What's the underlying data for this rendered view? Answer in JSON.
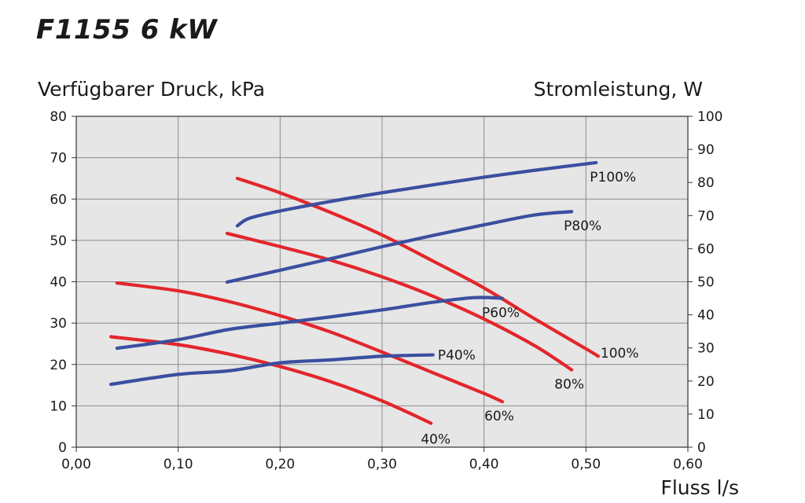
{
  "chart_data": {
    "type": "line",
    "title": "F1155 6 kW",
    "ylabel": "Verfügbarer Druck, kPa",
    "y2label": "Stromleistung, W",
    "xlabel": "Fluss l/s",
    "xlim": [
      0,
      0.6
    ],
    "ylim": [
      0,
      80
    ],
    "y2lim": [
      0,
      100
    ],
    "x_ticks": [
      "0,00",
      "0,10",
      "0,20",
      "0,30",
      "0,40",
      "0,50",
      "0,60"
    ],
    "y_ticks": [
      "0",
      "10",
      "20",
      "30",
      "40",
      "50",
      "60",
      "70",
      "80"
    ],
    "y2_ticks": [
      "0",
      "10",
      "20",
      "30",
      "40",
      "50",
      "60",
      "70",
      "80",
      "90",
      "100"
    ],
    "grid": true,
    "colors": {
      "pressure": "#e3262b",
      "power": "#3b4fa0",
      "plot_bg": "#e6e6e6",
      "grid": "#8a8a8a"
    },
    "series": [
      {
        "name": "100%",
        "kind": "pressure",
        "axis": "left",
        "x": [
          0.158,
          0.2,
          0.25,
          0.3,
          0.35,
          0.4,
          0.45,
          0.5,
          0.512
        ],
        "y": [
          65.0,
          61.5,
          56.7,
          51.3,
          45.0,
          38.5,
          31.0,
          23.8,
          22.0
        ]
      },
      {
        "name": "80%",
        "kind": "pressure",
        "axis": "left",
        "x": [
          0.148,
          0.2,
          0.25,
          0.3,
          0.35,
          0.4,
          0.45,
          0.486
        ],
        "y": [
          51.7,
          48.5,
          45.2,
          41.2,
          36.5,
          31.0,
          24.5,
          18.7
        ]
      },
      {
        "name": "60%",
        "kind": "pressure",
        "axis": "left",
        "x": [
          0.04,
          0.1,
          0.15,
          0.2,
          0.25,
          0.3,
          0.35,
          0.4,
          0.418
        ],
        "y": [
          39.7,
          37.8,
          35.2,
          31.8,
          27.8,
          23.0,
          18.0,
          13.0,
          11.0
        ]
      },
      {
        "name": "40%",
        "kind": "pressure",
        "axis": "left",
        "x": [
          0.034,
          0.1,
          0.15,
          0.2,
          0.25,
          0.3,
          0.348
        ],
        "y": [
          26.7,
          24.8,
          22.5,
          19.5,
          15.8,
          11.2,
          5.8
        ]
      },
      {
        "name": "P100%",
        "kind": "power",
        "axis": "right",
        "x": [
          0.158,
          0.17,
          0.2,
          0.25,
          0.3,
          0.35,
          0.4,
          0.45,
          0.51
        ],
        "y": [
          66.9,
          69.2,
          71.4,
          74.3,
          76.9,
          79.3,
          81.6,
          83.7,
          86.0
        ]
      },
      {
        "name": "P80%",
        "kind": "power",
        "axis": "right",
        "x": [
          0.148,
          0.2,
          0.25,
          0.3,
          0.35,
          0.4,
          0.45,
          0.486
        ],
        "y": [
          49.9,
          53.5,
          57.0,
          60.6,
          64.0,
          67.2,
          70.2,
          71.2
        ]
      },
      {
        "name": "P60%",
        "kind": "power",
        "axis": "right",
        "x": [
          0.04,
          0.1,
          0.15,
          0.2,
          0.25,
          0.3,
          0.35,
          0.39,
          0.418
        ],
        "y": [
          29.9,
          32.5,
          35.6,
          37.5,
          39.4,
          41.5,
          43.8,
          45.2,
          45.0
        ]
      },
      {
        "name": "P40%",
        "kind": "power",
        "axis": "right",
        "x": [
          0.034,
          0.1,
          0.15,
          0.2,
          0.25,
          0.3,
          0.35
        ],
        "y": [
          19.0,
          22.0,
          23.1,
          25.5,
          26.4,
          27.5,
          27.9
        ]
      }
    ]
  }
}
